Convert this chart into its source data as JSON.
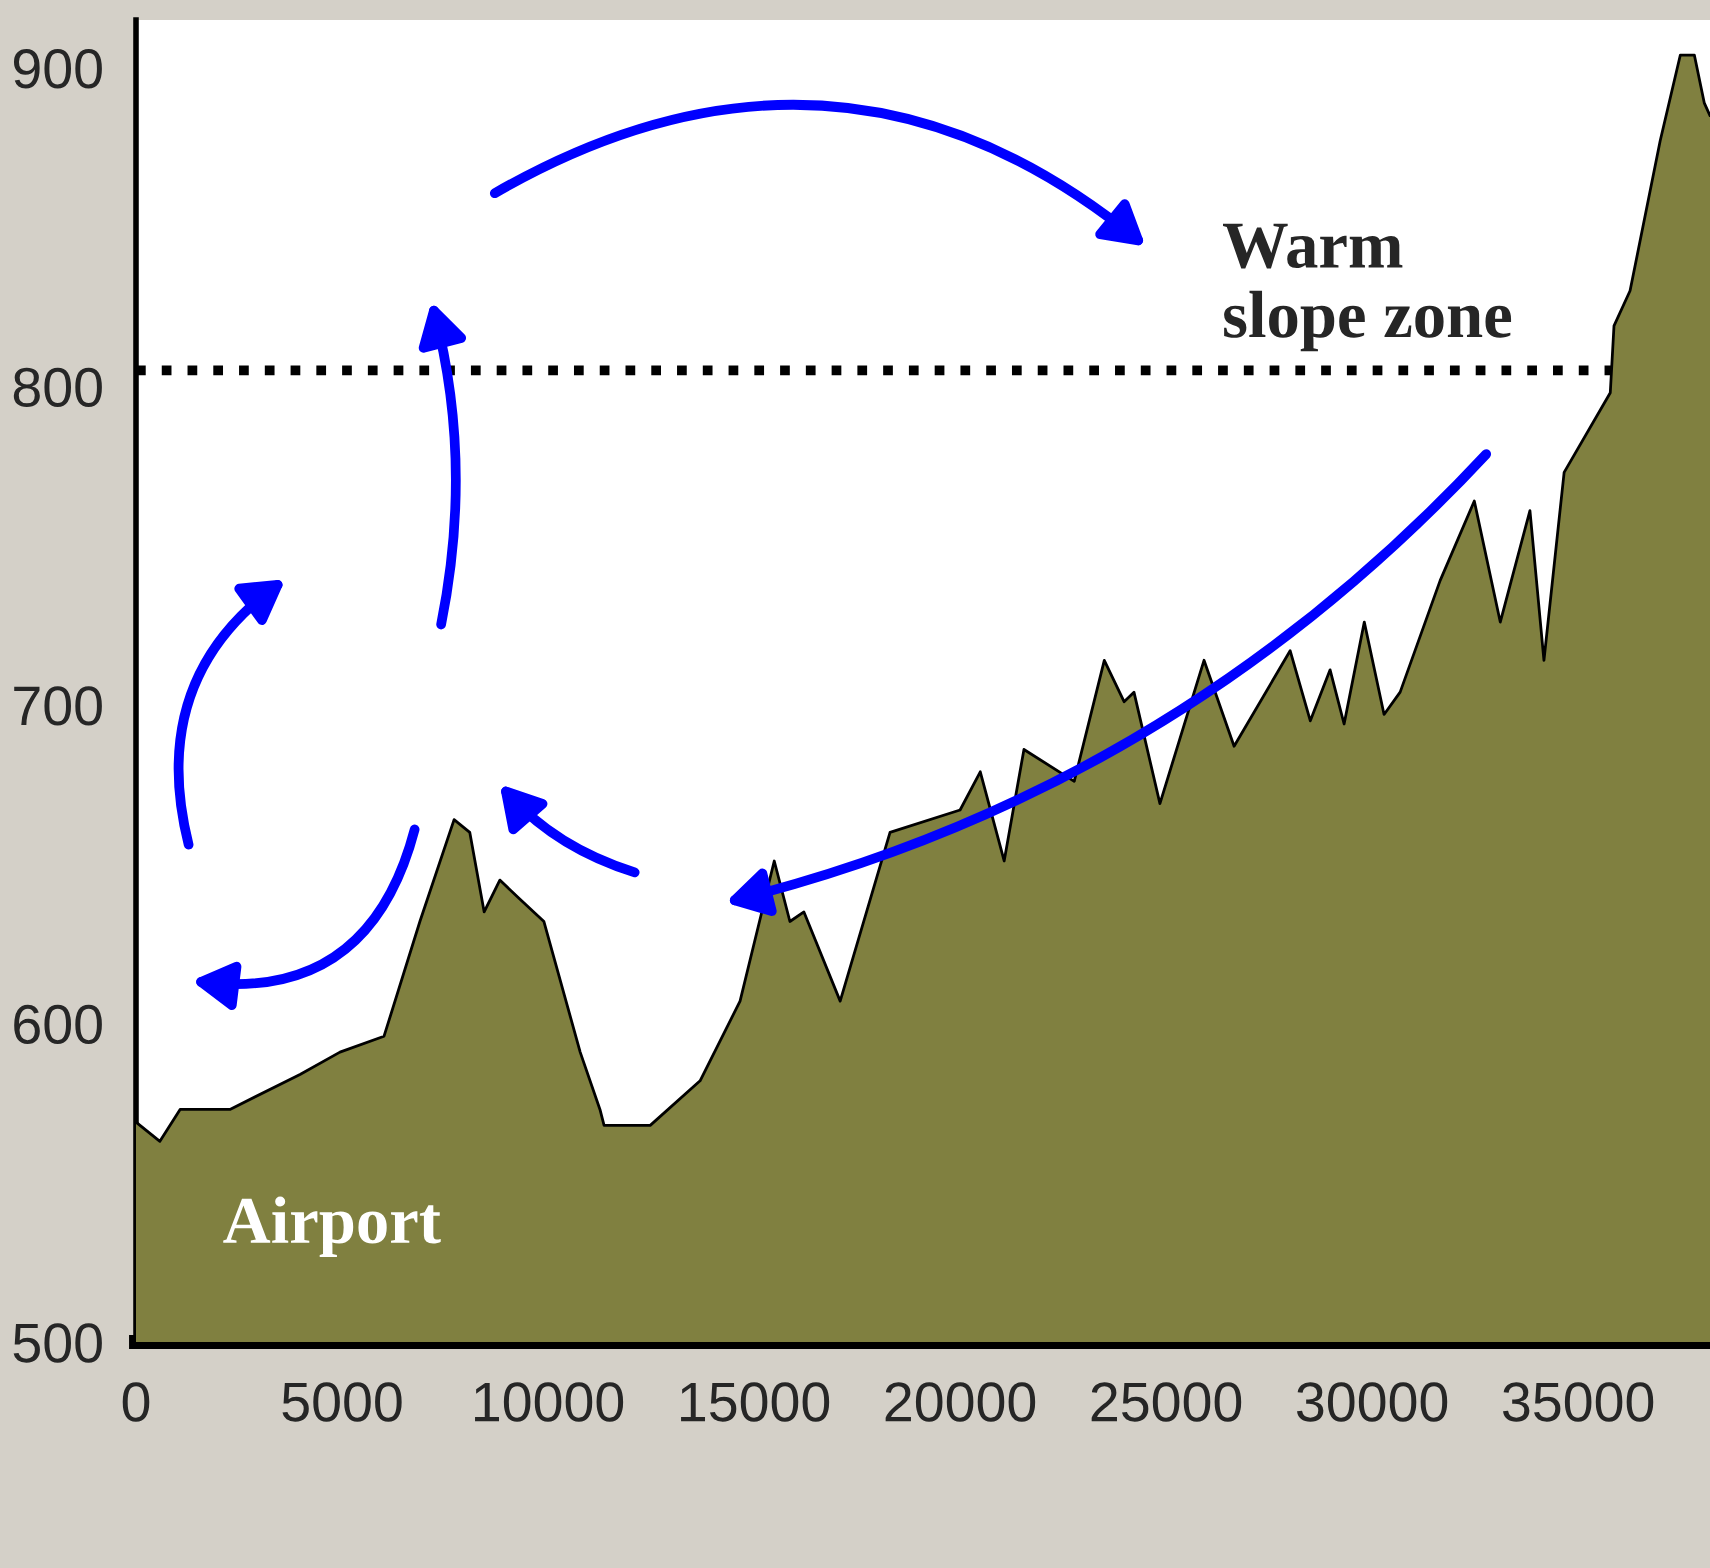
{
  "chart_data": {
    "type": "area",
    "x": [
      0,
      580,
      1070,
      2280,
      3980,
      4950,
      6020,
      6890,
      7720,
      8100,
      8450,
      8830,
      9320,
      9900,
      10780,
      11260,
      11360,
      12480,
      13690,
      14660,
      15490,
      15870,
      16210,
      17090,
      18300,
      20000,
      20490,
      21070,
      21550,
      22770,
      23500,
      23980,
      24220,
      24850,
      25920,
      26650,
      28010,
      28500,
      28980,
      29320,
      29810,
      30290,
      30680,
      31650,
      32480,
      33110,
      33830,
      34170,
      34660,
      35780,
      35870,
      36260,
      36990,
      37480,
      37820,
      38060,
      38200
    ],
    "series": [
      {
        "color": "#808040",
        "values": [
          569,
          563,
          573,
          573,
          584,
          591,
          596,
          632,
          664,
          660,
          635,
          645,
          639,
          632,
          591,
          573,
          568,
          568,
          582,
          607,
          651,
          632,
          635,
          607,
          660,
          667,
          679,
          651,
          686,
          676,
          714,
          701,
          704,
          669,
          714,
          687,
          717,
          695,
          711,
          694,
          726,
          697,
          704,
          739,
          764,
          726,
          761,
          714,
          773,
          798,
          819,
          830,
          877,
          904,
          904,
          889,
          885
        ]
      }
    ],
    "xlim": [
      0,
      38200
    ],
    "ylim": [
      500,
      915
    ],
    "xticks": [
      0,
      5000,
      10000,
      15000,
      20000,
      25000,
      30000,
      35000
    ],
    "yticks": [
      500,
      600,
      700,
      800,
      900
    ],
    "ref_lines": [
      {
        "axis": "y",
        "value": 805,
        "label": "Warm\nslope zone",
        "color": "#000000",
        "line_style": "dotted"
      }
    ],
    "annotations": [
      "Airport"
    ],
    "grid": false,
    "legend": false
  }
}
